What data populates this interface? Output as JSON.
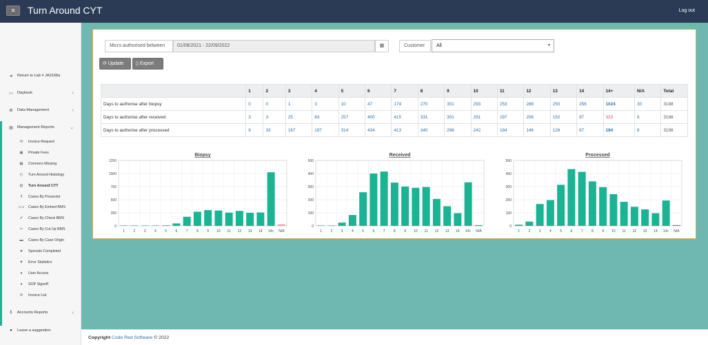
{
  "header": {
    "title": "Turn Around CYT",
    "menu_icon": "hamburger-icon",
    "logout_label": "Log out"
  },
  "sidebar": {
    "items": [
      {
        "label": "Return to Lab # JA3168a",
        "icon": "arrow-right-icon",
        "glyph": "➜"
      },
      {
        "label": "Daybook",
        "icon": "monitor-icon",
        "glyph": "▭",
        "chevron": "‹"
      },
      {
        "label": "Data Management",
        "icon": "gear-icon",
        "glyph": "⚙",
        "chevron": "‹"
      },
      {
        "label": "Management Reports",
        "icon": "bar-chart-icon",
        "glyph": "▤",
        "chevron": "⌄"
      }
    ],
    "sub_items": [
      {
        "label": "Invoice Request",
        "icon": "envelope-icon",
        "glyph": "✉"
      },
      {
        "label": "Private Fees",
        "icon": "money-icon",
        "glyph": "▣"
      },
      {
        "label": "Coroners Missing",
        "icon": "table-icon",
        "glyph": "▦"
      },
      {
        "label": "Turn Around Histology",
        "icon": "clock-icon",
        "glyph": "◴"
      },
      {
        "label": "Turn Around CYT",
        "icon": "clock-icon",
        "glyph": "◴",
        "active": true
      },
      {
        "label": "Cases By Prosector",
        "icon": "flask-icon",
        "glyph": "⚱"
      },
      {
        "label": "Cases By Embed BMS",
        "icon": "toggle-icon",
        "glyph": "⊂⊃"
      },
      {
        "label": "Cases By Check BMS",
        "icon": "check-icon",
        "glyph": "✔"
      },
      {
        "label": "Cases By Cut Up BMS",
        "icon": "scissors-icon",
        "glyph": "✂"
      },
      {
        "label": "Cases By Case Origin",
        "icon": "hdd-icon",
        "glyph": "▬"
      },
      {
        "label": "Specials Completed",
        "icon": "star-icon",
        "glyph": "★"
      },
      {
        "label": "Error Statistics",
        "icon": "filter-icon",
        "glyph": "▼"
      },
      {
        "label": "User Access",
        "icon": "user-icon",
        "glyph": "●"
      },
      {
        "label": "SOP Signoff",
        "icon": "user-icon",
        "glyph": "●"
      },
      {
        "label": "Invoice List",
        "icon": "envelope-icon",
        "glyph": "✉"
      }
    ],
    "bottom_items": [
      {
        "label": "Accounts Reports",
        "icon": "pound-icon",
        "glyph": "£",
        "chevron": "‹"
      },
      {
        "label": "Leave a suggestion",
        "icon": "comment-icon",
        "glyph": "●"
      }
    ]
  },
  "filters": {
    "date_label": "Micro authorised between",
    "date_value": "01/08/2021 - 22/09/2022",
    "calendar_icon": "calendar-icon",
    "customer_label": "Customer",
    "customer_value": "All",
    "update_label": "Update",
    "export_label": "Export"
  },
  "table": {
    "headers": [
      "",
      "1",
      "2",
      "3",
      "4",
      "5",
      "6",
      "7",
      "8",
      "9",
      "10",
      "11",
      "12",
      "13",
      "14",
      "14+",
      "N/A",
      "Total"
    ],
    "rows": [
      {
        "label": "Days to authorise after biopsy",
        "cells": [
          "0",
          "0",
          "1",
          "3",
          "10",
          "47",
          "174",
          "270",
          "301",
          "293",
          "253",
          "286",
          "250",
          "256",
          "1024",
          "30"
        ],
        "total": "3198",
        "bold_index": 14,
        "red_index": -1
      },
      {
        "label": "Days to authorise after received",
        "cells": [
          "3",
          "3",
          "25",
          "83",
          "257",
          "400",
          "415",
          "331",
          "301",
          "291",
          "297",
          "206",
          "150",
          "97",
          "333",
          "6"
        ],
        "total": "3198",
        "bold_index": -1,
        "red_index": 14
      },
      {
        "label": "Days to authorise after processed",
        "cells": [
          "9",
          "33",
          "167",
          "197",
          "314",
          "434",
          "413",
          "340",
          "296",
          "242",
          "184",
          "146",
          "126",
          "97",
          "194",
          "6"
        ],
        "total": "3198",
        "bold_index": 14,
        "red_index": -1
      }
    ]
  },
  "colors": {
    "bar": "#1ab394",
    "bar_alt": "#e6a8b4",
    "accent": "#2a6fa8"
  },
  "chart_data": [
    {
      "type": "bar",
      "title": "Biopsy",
      "categories": [
        "1",
        "2",
        "3",
        "4",
        "5",
        "6",
        "7",
        "8",
        "9",
        "10",
        "11",
        "12",
        "13",
        "14",
        "14+",
        "N/A"
      ],
      "values": [
        0,
        0,
        1,
        3,
        10,
        47,
        174,
        270,
        301,
        293,
        253,
        286,
        250,
        256,
        1024,
        30
      ],
      "ylim": [
        0,
        1250
      ],
      "yticks": [
        "0",
        "250",
        "500",
        "750",
        "1000",
        "1250"
      ],
      "grid": true
    },
    {
      "type": "bar",
      "title": "Received",
      "categories": [
        "1",
        "2",
        "3",
        "4",
        "5",
        "6",
        "7",
        "8",
        "9",
        "10",
        "11",
        "12",
        "13",
        "14",
        "14+",
        "N/A"
      ],
      "values": [
        3,
        3,
        25,
        83,
        257,
        400,
        415,
        331,
        301,
        291,
        297,
        206,
        150,
        97,
        333,
        6
      ],
      "ylim": [
        0,
        500
      ],
      "yticks": [
        "0",
        "100",
        "200",
        "300",
        "400",
        "500"
      ],
      "grid": true
    },
    {
      "type": "bar",
      "title": "Processed",
      "categories": [
        "1",
        "2",
        "3",
        "4",
        "5",
        "6",
        "7",
        "8",
        "9",
        "10",
        "11",
        "12",
        "13",
        "14",
        "14+",
        "N/A"
      ],
      "values": [
        9,
        33,
        167,
        197,
        314,
        434,
        413,
        340,
        296,
        242,
        184,
        146,
        126,
        97,
        194,
        6
      ],
      "ylim": [
        0,
        500
      ],
      "yticks": [
        "0",
        "100",
        "200",
        "300",
        "400",
        "500"
      ],
      "grid": true
    }
  ],
  "footer": {
    "prefix": "Copyright ",
    "company": "Code Red Software",
    "suffix": " © 2022"
  }
}
